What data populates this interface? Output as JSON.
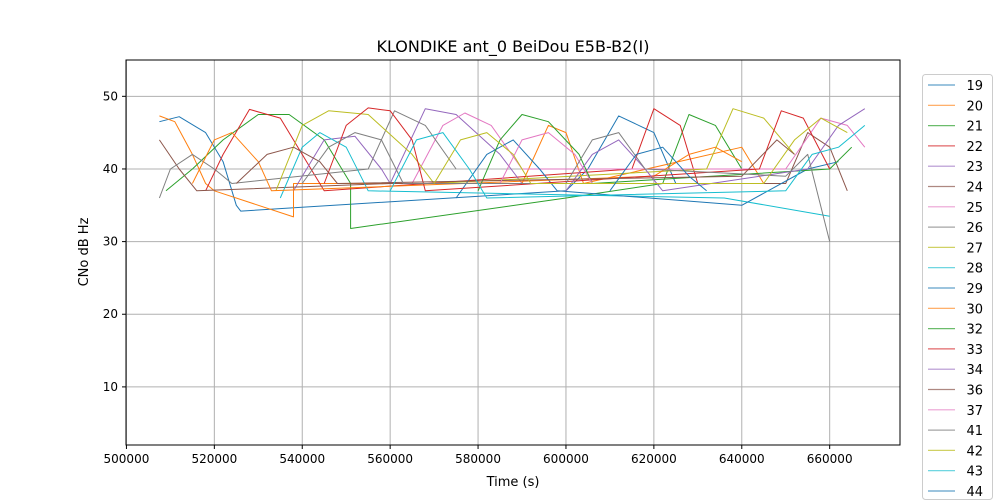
{
  "chart_data": {
    "type": "line",
    "title": "KLONDIKE ant_0 BeiDou E5B-B2(I)",
    "xlabel": "Time (s)",
    "ylabel": "CNo dB Hz",
    "xlim": [
      499900,
      676000
    ],
    "ylim": [
      2,
      55
    ],
    "xticks": [
      500000,
      520000,
      540000,
      560000,
      580000,
      600000,
      620000,
      640000,
      660000
    ],
    "yticks": [
      10,
      20,
      30,
      40,
      50
    ],
    "grid": true,
    "legend_position": "outside-right",
    "series": [
      {
        "name": "19",
        "color": "#1f77b4",
        "points": [
          [
            507500,
            46.5
          ],
          [
            512000,
            47.2
          ],
          [
            518000,
            45
          ],
          [
            522000,
            41
          ],
          [
            525000,
            35
          ],
          [
            526000,
            34.2
          ],
          [
            600000,
            37
          ],
          [
            605000,
            40
          ],
          [
            612000,
            47.3
          ],
          [
            620000,
            45
          ],
          [
            625000,
            38
          ]
        ]
      },
      {
        "name": "20",
        "color": "#ff7f0e",
        "points": [
          [
            507500,
            47.3
          ],
          [
            511000,
            46.5
          ],
          [
            515000,
            42
          ],
          [
            518000,
            38
          ],
          [
            520000,
            37
          ],
          [
            538000,
            33.4
          ],
          [
            538000,
            38
          ],
          [
            590000,
            38
          ],
          [
            596000,
            46
          ],
          [
            600000,
            45
          ],
          [
            604000,
            38
          ],
          [
            640000,
            43
          ],
          [
            645000,
            38
          ]
        ]
      },
      {
        "name": "21",
        "color": "#2ca02c",
        "points": [
          [
            509000,
            37
          ],
          [
            515000,
            40
          ],
          [
            522000,
            44
          ],
          [
            530000,
            47.5
          ],
          [
            537000,
            47.5
          ],
          [
            545000,
            44
          ],
          [
            551000,
            38
          ],
          [
            551000,
            31.8
          ],
          [
            600000,
            36
          ],
          [
            622000,
            38
          ],
          [
            628000,
            47.5
          ],
          [
            634000,
            46
          ],
          [
            640000,
            40
          ]
        ]
      },
      {
        "name": "22",
        "color": "#d62728",
        "points": [
          [
            518000,
            37
          ],
          [
            522000,
            42
          ],
          [
            528000,
            48.2
          ],
          [
            535000,
            47
          ],
          [
            542000,
            40
          ],
          [
            545000,
            37
          ],
          [
            615000,
            40
          ],
          [
            620000,
            48.3
          ],
          [
            626000,
            46
          ],
          [
            630000,
            38
          ]
        ]
      },
      {
        "name": "23",
        "color": "#9467bd",
        "points": [
          [
            538000,
            37
          ],
          [
            545000,
            44
          ],
          [
            552000,
            44.5
          ],
          [
            558000,
            40
          ],
          [
            560000,
            38
          ],
          [
            568000,
            48.3
          ],
          [
            575000,
            47.5
          ],
          [
            585000,
            42
          ],
          [
            590000,
            38
          ]
        ]
      },
      {
        "name": "24",
        "color": "#8c564b",
        "points": [
          [
            507500,
            44
          ],
          [
            512000,
            40
          ],
          [
            516000,
            37
          ],
          [
            560000,
            38
          ],
          [
            650000,
            38
          ],
          [
            655000,
            45
          ],
          [
            660000,
            43
          ],
          [
            664000,
            37
          ]
        ]
      },
      {
        "name": "25",
        "color": "#e377c2",
        "points": [
          [
            565000,
            38
          ],
          [
            572000,
            46
          ],
          [
            577000,
            47.7
          ],
          [
            583000,
            46
          ],
          [
            590000,
            40
          ],
          [
            650000,
            40
          ],
          [
            658000,
            47
          ],
          [
            664000,
            46
          ],
          [
            668000,
            43
          ]
        ]
      },
      {
        "name": "26",
        "color": "#7f7f7f",
        "points": [
          [
            507500,
            36
          ],
          [
            510000,
            40
          ],
          [
            515000,
            42
          ],
          [
            520000,
            40
          ],
          [
            524000,
            38
          ],
          [
            555000,
            40
          ],
          [
            561000,
            48
          ],
          [
            568000,
            46
          ],
          [
            575000,
            40
          ]
        ]
      },
      {
        "name": "27",
        "color": "#bcbd22",
        "points": [
          [
            534000,
            37
          ],
          [
            540000,
            46
          ],
          [
            546000,
            48
          ],
          [
            555000,
            47.5
          ],
          [
            565000,
            42
          ],
          [
            570000,
            38
          ],
          [
            632000,
            40
          ],
          [
            638000,
            48.3
          ],
          [
            645000,
            47
          ],
          [
            652000,
            42
          ]
        ]
      },
      {
        "name": "28",
        "color": "#17becf",
        "points": [
          [
            535000,
            36
          ],
          [
            540000,
            43
          ],
          [
            544000,
            45
          ],
          [
            550000,
            43
          ],
          [
            555000,
            37
          ],
          [
            636000,
            36
          ],
          [
            660000,
            33.5
          ]
        ]
      },
      {
        "name": "29",
        "color": "#1f77b4",
        "points": [
          [
            575000,
            36
          ],
          [
            582000,
            42
          ],
          [
            588000,
            44
          ],
          [
            594000,
            40
          ],
          [
            598000,
            37
          ],
          [
            640000,
            35
          ],
          [
            655000,
            40
          ],
          [
            662000,
            41
          ]
        ]
      },
      {
        "name": "30",
        "color": "#ff7f0e",
        "points": [
          [
            515000,
            38
          ],
          [
            520000,
            44
          ],
          [
            524000,
            45
          ],
          [
            530000,
            41
          ],
          [
            533000,
            37
          ],
          [
            620000,
            39
          ],
          [
            628000,
            42
          ],
          [
            634000,
            43
          ],
          [
            640000,
            41
          ]
        ]
      },
      {
        "name": "32",
        "color": "#2ca02c",
        "points": [
          [
            580000,
            37
          ],
          [
            585000,
            44
          ],
          [
            590000,
            47.5
          ],
          [
            596000,
            46.5
          ],
          [
            603000,
            42
          ],
          [
            606000,
            38
          ],
          [
            660000,
            40
          ],
          [
            665000,
            43
          ]
        ]
      },
      {
        "name": "33",
        "color": "#d62728",
        "points": [
          [
            545000,
            38
          ],
          [
            550000,
            46
          ],
          [
            555000,
            48.4
          ],
          [
            560000,
            48
          ],
          [
            565000,
            44
          ],
          [
            568000,
            37
          ],
          [
            644000,
            40
          ],
          [
            649000,
            48
          ],
          [
            654000,
            47
          ],
          [
            660000,
            40
          ]
        ]
      },
      {
        "name": "34",
        "color": "#9467bd",
        "points": [
          [
            600000,
            37
          ],
          [
            606000,
            42
          ],
          [
            612000,
            44
          ],
          [
            618000,
            40
          ],
          [
            622000,
            37
          ],
          [
            655000,
            40
          ],
          [
            662000,
            46
          ],
          [
            668000,
            48.3
          ]
        ]
      },
      {
        "name": "36",
        "color": "#8c564b",
        "points": [
          [
            525000,
            38
          ],
          [
            532000,
            42
          ],
          [
            538000,
            43
          ],
          [
            544000,
            41
          ],
          [
            548000,
            38
          ],
          [
            640000,
            39
          ],
          [
            648000,
            44
          ],
          [
            652000,
            42
          ]
        ]
      },
      {
        "name": "37",
        "color": "#e377c2",
        "points": [
          [
            585000,
            38
          ],
          [
            590000,
            44
          ],
          [
            596000,
            45
          ],
          [
            602000,
            42
          ],
          [
            606000,
            38
          ]
        ]
      },
      {
        "name": "41",
        "color": "#7f7f7f",
        "points": [
          [
            540000,
            38
          ],
          [
            546000,
            43
          ],
          [
            552000,
            45
          ],
          [
            558000,
            44
          ],
          [
            563000,
            38
          ],
          [
            600000,
            38
          ],
          [
            606000,
            44
          ],
          [
            612000,
            45
          ],
          [
            618000,
            40
          ],
          [
            650000,
            39
          ],
          [
            655000,
            42
          ],
          [
            660000,
            30
          ]
        ]
      },
      {
        "name": "42",
        "color": "#bcbd22",
        "points": [
          [
            570000,
            38
          ],
          [
            576000,
            44
          ],
          [
            582000,
            45
          ],
          [
            588000,
            42
          ],
          [
            592000,
            38
          ],
          [
            645000,
            38
          ],
          [
            652000,
            44
          ],
          [
            658000,
            47
          ],
          [
            664000,
            45
          ]
        ]
      },
      {
        "name": "43",
        "color": "#17becf",
        "points": [
          [
            560000,
            37
          ],
          [
            566000,
            44
          ],
          [
            572000,
            45
          ],
          [
            578000,
            40
          ],
          [
            582000,
            36
          ],
          [
            650000,
            37
          ],
          [
            656000,
            42
          ],
          [
            662000,
            43
          ],
          [
            668000,
            46
          ]
        ]
      },
      {
        "name": "44",
        "color": "#1f77b4",
        "points": [
          [
            610000,
            37
          ],
          [
            616000,
            42
          ],
          [
            622000,
            43
          ],
          [
            628000,
            39
          ],
          [
            632000,
            37
          ]
        ]
      }
    ]
  }
}
